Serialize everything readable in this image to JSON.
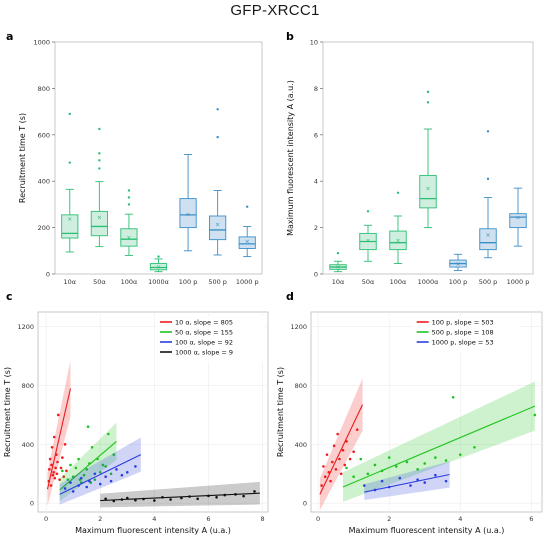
{
  "title": "GFP-XRCC1",
  "colors": {
    "alpha_green": "#2bbf73",
    "proton_blue": "#3b8fc9",
    "alpha_green_fill": "#cfeee0",
    "proton_blue_fill": "#cfe1f0",
    "red": "#ee1c1c",
    "green": "#1ec41e",
    "blue": "#2b3ee0",
    "black": "#111111"
  },
  "chart_data": [
    {
      "panel_label": "a",
      "type": "box",
      "ylabel": "Recruitment time T (s)",
      "ylim": [
        0,
        1000
      ],
      "yticks": [
        0,
        200,
        400,
        600,
        800,
        1000
      ],
      "categories": [
        "10α",
        "50α",
        "100α",
        "1000α",
        "100 p",
        "500 p",
        "1000 p"
      ],
      "boxes": [
        {
          "min": 95,
          "q1": 155,
          "median": 175,
          "q3": 255,
          "max": 365,
          "mean": 238,
          "color": "alpha_green",
          "outliers": [
            480,
            690
          ]
        },
        {
          "min": 118,
          "q1": 165,
          "median": 205,
          "q3": 270,
          "max": 398,
          "mean": 245,
          "color": "alpha_green",
          "outliers": [
            455,
            490,
            520,
            625
          ]
        },
        {
          "min": 80,
          "q1": 120,
          "median": 150,
          "q3": 195,
          "max": 258,
          "mean": 158,
          "color": "alpha_green",
          "outliers": [
            300,
            330,
            360
          ]
        },
        {
          "min": 10,
          "q1": 18,
          "median": 28,
          "q3": 45,
          "max": 65,
          "mean": 30,
          "color": "alpha_green",
          "outliers": [
            75
          ]
        },
        {
          "min": 100,
          "q1": 200,
          "median": 255,
          "q3": 325,
          "max": 515,
          "mean": 258,
          "color": "proton_blue",
          "outliers": []
        },
        {
          "min": 82,
          "q1": 148,
          "median": 190,
          "q3": 250,
          "max": 360,
          "mean": 215,
          "color": "proton_blue",
          "outliers": [
            590,
            710
          ]
        },
        {
          "min": 75,
          "q1": 110,
          "median": 130,
          "q3": 160,
          "max": 205,
          "mean": 140,
          "color": "proton_blue",
          "outliers": [
            290
          ]
        }
      ]
    },
    {
      "panel_label": "b",
      "type": "box",
      "ylabel": "Maximum fluorescent intensity A (a.u.)",
      "ylim": [
        0,
        10
      ],
      "yticks": [
        0,
        2,
        4,
        6,
        8,
        10
      ],
      "categories": [
        "10α",
        "50α",
        "100α",
        "1000α",
        "100 p",
        "500 p",
        "1000 p"
      ],
      "boxes": [
        {
          "min": 0.1,
          "q1": 0.2,
          "median": 0.3,
          "q3": 0.4,
          "max": 0.55,
          "mean": 0.3,
          "color": "alpha_green",
          "outliers": [
            0.9
          ]
        },
        {
          "min": 0.55,
          "q1": 1.05,
          "median": 1.4,
          "q3": 1.75,
          "max": 2.1,
          "mean": 1.45,
          "color": "alpha_green",
          "outliers": [
            2.7
          ]
        },
        {
          "min": 0.45,
          "q1": 1.05,
          "median": 1.35,
          "q3": 1.85,
          "max": 2.5,
          "mean": 1.45,
          "color": "alpha_green",
          "outliers": [
            3.5
          ]
        },
        {
          "min": 2.0,
          "q1": 2.85,
          "median": 3.25,
          "q3": 4.25,
          "max": 6.25,
          "mean": 3.7,
          "color": "alpha_green",
          "outliers": [
            7.4,
            7.85
          ]
        },
        {
          "min": 0.15,
          "q1": 0.3,
          "median": 0.45,
          "q3": 0.6,
          "max": 0.85,
          "mean": 0.45,
          "color": "proton_blue",
          "outliers": []
        },
        {
          "min": 0.7,
          "q1": 1.05,
          "median": 1.35,
          "q3": 1.95,
          "max": 3.3,
          "mean": 1.7,
          "color": "proton_blue",
          "outliers": [
            4.1,
            6.15
          ]
        },
        {
          "min": 1.2,
          "q1": 2.0,
          "median": 2.45,
          "q3": 2.6,
          "max": 3.7,
          "mean": 2.45,
          "color": "proton_blue",
          "outliers": []
        }
      ]
    },
    {
      "panel_label": "c",
      "type": "scatter",
      "xlabel": "Maximum fluorescent intensity A (u.a.)",
      "ylabel": "Recruitment time T (s)",
      "xlim": [
        -0.3,
        8.2
      ],
      "ylim": [
        -60,
        1300
      ],
      "xticks": [
        0,
        2,
        4,
        6,
        8
      ],
      "yticks": [
        0,
        400,
        800,
        1200
      ],
      "series": [
        {
          "name": "10 α, slope =  805",
          "color": "red",
          "fit_x": [
            0.05,
            0.9
          ],
          "fit_y": [
            95,
            780
          ],
          "points": [
            [
              0.1,
              150
            ],
            [
              0.12,
              230
            ],
            [
              0.15,
              300
            ],
            [
              0.18,
              120
            ],
            [
              0.2,
              260
            ],
            [
              0.22,
              380
            ],
            [
              0.25,
              190
            ],
            [
              0.28,
              210
            ],
            [
              0.3,
              450
            ],
            [
              0.32,
              170
            ],
            [
              0.35,
              240
            ],
            [
              0.38,
              330
            ],
            [
              0.4,
              200
            ],
            [
              0.42,
              280
            ],
            [
              0.45,
              600
            ],
            [
              0.5,
              160
            ],
            [
              0.55,
              240
            ],
            [
              0.6,
              310
            ],
            [
              0.65,
              180
            ],
            [
              0.7,
              400
            ],
            [
              0.75,
              220
            ]
          ]
        },
        {
          "name": "50 α, slope =  155",
          "color": "green",
          "fit_x": [
            0.5,
            2.6
          ],
          "fit_y": [
            90,
            420
          ],
          "points": [
            [
              0.6,
              220
            ],
            [
              0.8,
              160
            ],
            [
              0.9,
              260
            ],
            [
              1.0,
              180
            ],
            [
              1.1,
              240
            ],
            [
              1.2,
              300
            ],
            [
              1.3,
              140
            ],
            [
              1.4,
              190
            ],
            [
              1.5,
              230
            ],
            [
              1.55,
              520
            ],
            [
              1.6,
              270
            ],
            [
              1.7,
              380
            ],
            [
              1.8,
              160
            ],
            [
              1.9,
              300
            ],
            [
              2.0,
              210
            ],
            [
              2.1,
              260
            ],
            [
              2.2,
              250
            ],
            [
              2.3,
              470
            ],
            [
              2.4,
              200
            ],
            [
              2.5,
              330
            ],
            [
              1.25,
              160
            ],
            [
              1.65,
              140
            ]
          ]
        },
        {
          "name": "100 α, slope =  92",
          "color": "blue",
          "fit_x": [
            0.5,
            3.5
          ],
          "fit_y": [
            60,
            330
          ],
          "points": [
            [
              0.7,
              100
            ],
            [
              0.9,
              140
            ],
            [
              1.0,
              80
            ],
            [
              1.2,
              120
            ],
            [
              1.3,
              170
            ],
            [
              1.5,
              110
            ],
            [
              1.6,
              150
            ],
            [
              1.8,
              200
            ],
            [
              2.0,
              130
            ],
            [
              2.2,
              180
            ],
            [
              2.4,
              150
            ],
            [
              2.6,
              230
            ],
            [
              2.8,
              190
            ],
            [
              3.0,
              210
            ],
            [
              3.3,
              250
            ]
          ]
        },
        {
          "name": "1000 α, slope =  9",
          "color": "black",
          "fit_x": [
            2.0,
            7.9
          ],
          "fit_y": [
            18,
            68
          ],
          "points": [
            [
              2.2,
              30
            ],
            [
              2.5,
              15
            ],
            [
              2.8,
              25
            ],
            [
              3.0,
              35
            ],
            [
              3.3,
              20
            ],
            [
              3.6,
              28
            ],
            [
              4.0,
              18
            ],
            [
              4.3,
              40
            ],
            [
              4.6,
              25
            ],
            [
              5.0,
              35
            ],
            [
              5.3,
              45
            ],
            [
              5.6,
              30
            ],
            [
              6.0,
              50
            ],
            [
              6.3,
              40
            ],
            [
              6.6,
              55
            ],
            [
              7.0,
              60
            ],
            [
              7.3,
              48
            ],
            [
              7.7,
              80
            ]
          ]
        }
      ],
      "legend_position": "top-right"
    },
    {
      "panel_label": "d",
      "type": "scatter",
      "xlabel": "Maximum fluorescent intensity A (u.a.)",
      "ylabel": "Recruitment time T (s)",
      "xlim": [
        -0.2,
        6.3
      ],
      "ylim": [
        -60,
        1300
      ],
      "xticks": [
        0,
        2,
        4,
        6
      ],
      "yticks": [
        0,
        400,
        800,
        1200
      ],
      "series": [
        {
          "name": "100 p, slope =  503",
          "color": "red",
          "fit_x": [
            0.05,
            1.25
          ],
          "fit_y": [
            60,
            670
          ],
          "points": [
            [
              0.1,
              120
            ],
            [
              0.15,
              250
            ],
            [
              0.2,
              180
            ],
            [
              0.25,
              330
            ],
            [
              0.3,
              210
            ],
            [
              0.35,
              150
            ],
            [
              0.4,
              280
            ],
            [
              0.45,
              390
            ],
            [
              0.5,
              230
            ],
            [
              0.55,
              470
            ],
            [
              0.6,
              300
            ],
            [
              0.65,
              200
            ],
            [
              0.7,
              360
            ],
            [
              0.75,
              260
            ],
            [
              0.8,
              420
            ],
            [
              0.9,
              300
            ],
            [
              1.0,
              350
            ],
            [
              1.1,
              500
            ]
          ]
        },
        {
          "name": "500 p, slope =  108",
          "color": "green",
          "fit_x": [
            0.7,
            6.1
          ],
          "fit_y": [
            110,
            660
          ],
          "points": [
            [
              0.8,
              240
            ],
            [
              1.0,
              180
            ],
            [
              1.2,
              300
            ],
            [
              1.4,
              200
            ],
            [
              1.6,
              260
            ],
            [
              1.8,
              220
            ],
            [
              2.0,
              310
            ],
            [
              2.2,
              250
            ],
            [
              2.5,
              280
            ],
            [
              2.8,
              230
            ],
            [
              3.0,
              270
            ],
            [
              3.3,
              310
            ],
            [
              3.6,
              290
            ],
            [
              4.0,
              330
            ],
            [
              4.4,
              380
            ],
            [
              3.8,
              720
            ],
            [
              6.1,
              600
            ]
          ]
        },
        {
          "name": "1000 p, slope =  53",
          "color": "blue",
          "fit_x": [
            1.3,
            3.7
          ],
          "fit_y": [
            75,
            195
          ],
          "points": [
            [
              1.3,
              120
            ],
            [
              1.6,
              90
            ],
            [
              1.8,
              150
            ],
            [
              2.0,
              110
            ],
            [
              2.3,
              170
            ],
            [
              2.6,
              120
            ],
            [
              2.8,
              160
            ],
            [
              3.0,
              140
            ],
            [
              3.3,
              190
            ],
            [
              3.6,
              150
            ]
          ]
        }
      ],
      "legend_position": "top-left"
    }
  ]
}
